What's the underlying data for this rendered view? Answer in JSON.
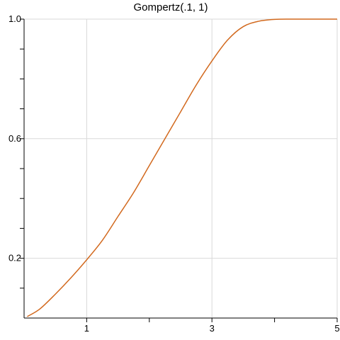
{
  "chart_data": {
    "type": "line",
    "title": "Gompertz(.1, 1)",
    "xlabel": "",
    "ylabel": "",
    "xlim": [
      0,
      5
    ],
    "ylim": [
      0,
      1.0
    ],
    "x_major_ticks": [
      1,
      3,
      5
    ],
    "x_minor_ticks": [
      2,
      4
    ],
    "y_major_ticks": [
      0.2,
      0.6,
      1.0
    ],
    "y_tick_labels": [
      "0.2",
      "0.6",
      "1.0"
    ],
    "y_minor_ticks": [
      0.1,
      0.3,
      0.4,
      0.5,
      0.7,
      0.8,
      0.9
    ],
    "grid": true,
    "line_color": "#d2691e",
    "series": [
      {
        "name": "",
        "x": [
          0.05,
          0.25,
          0.5,
          0.75,
          1.0,
          1.25,
          1.5,
          1.75,
          2.0,
          2.25,
          2.5,
          2.75,
          3.0,
          3.25,
          3.5,
          3.75,
          4.0,
          4.25,
          4.5,
          4.75,
          5.0
        ],
        "y": [
          0.005,
          0.03,
          0.08,
          0.135,
          0.195,
          0.26,
          0.34,
          0.42,
          0.51,
          0.6,
          0.69,
          0.78,
          0.86,
          0.93,
          0.975,
          0.993,
          0.999,
          1.0,
          1.0,
          1.0,
          1.0
        ]
      }
    ]
  }
}
